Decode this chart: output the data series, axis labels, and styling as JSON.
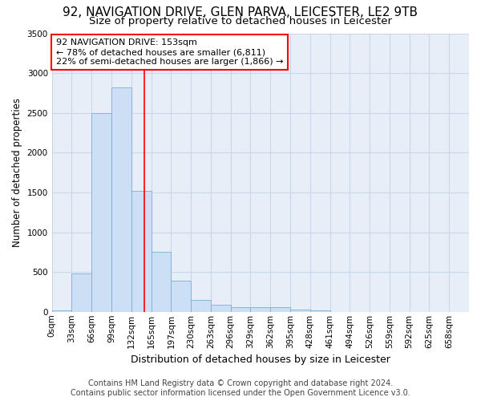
{
  "title1": "92, NAVIGATION DRIVE, GLEN PARVA, LEICESTER, LE2 9TB",
  "title2": "Size of property relative to detached houses in Leicester",
  "xlabel": "Distribution of detached houses by size in Leicester",
  "ylabel": "Number of detached properties",
  "footer1": "Contains HM Land Registry data © Crown copyright and database right 2024.",
  "footer2": "Contains public sector information licensed under the Open Government Licence v3.0.",
  "annotation_line1": "92 NAVIGATION DRIVE: 153sqm",
  "annotation_line2": "← 78% of detached houses are smaller (6,811)",
  "annotation_line3": "22% of semi-detached houses are larger (1,866) →",
  "bin_labels": [
    "0sqm",
    "33sqm",
    "66sqm",
    "99sqm",
    "132sqm",
    "165sqm",
    "197sqm",
    "230sqm",
    "263sqm",
    "296sqm",
    "329sqm",
    "362sqm",
    "395sqm",
    "428sqm",
    "461sqm",
    "494sqm",
    "526sqm",
    "559sqm",
    "592sqm",
    "625sqm",
    "658sqm"
  ],
  "bar_values": [
    20,
    480,
    2500,
    2820,
    1520,
    750,
    390,
    145,
    85,
    55,
    55,
    55,
    30,
    20,
    0,
    0,
    0,
    0,
    0,
    0,
    0
  ],
  "bar_color": "#ccdff5",
  "bar_edge_color": "#7bafd4",
  "grid_color": "#c8d8ea",
  "background_color": "#e8eef8",
  "ylim": [
    0,
    3500
  ],
  "yticks": [
    0,
    500,
    1000,
    1500,
    2000,
    2500,
    3000,
    3500
  ],
  "title1_fontsize": 11,
  "title2_fontsize": 9.5,
  "xlabel_fontsize": 9,
  "ylabel_fontsize": 8.5,
  "tick_fontsize": 7.5,
  "annotation_fontsize": 8,
  "footer_fontsize": 7
}
